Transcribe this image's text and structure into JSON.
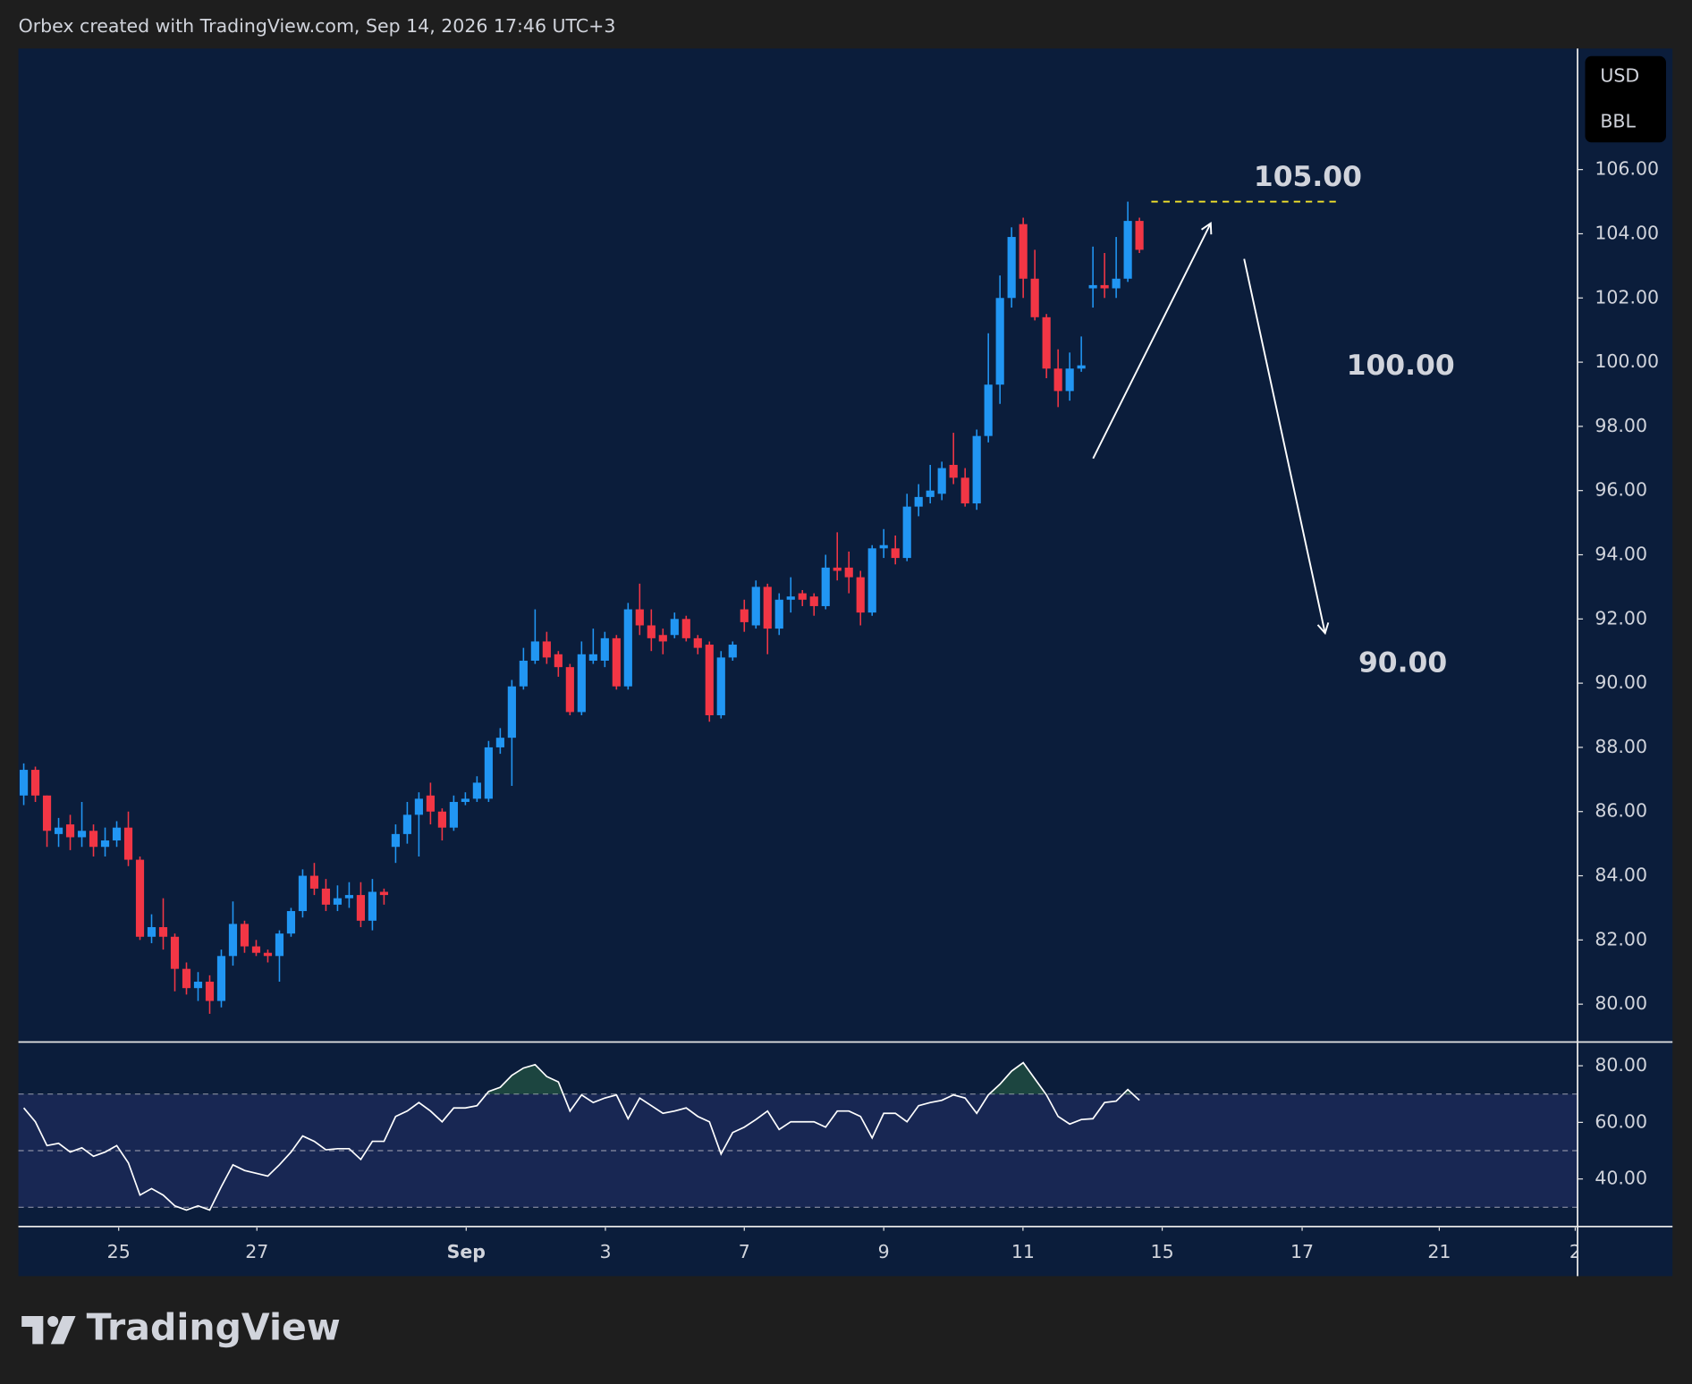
{
  "header": "Orbex created with TradingView.com, Sep 14, 2026 17:46 UTC+3",
  "branding": "TradingView",
  "units": [
    "USD",
    "BBL"
  ],
  "chart_data": [
    {
      "type": "candlestick",
      "x": [
        0,
        1,
        2,
        3,
        4,
        5,
        6,
        7,
        8,
        9,
        10,
        11,
        12,
        13,
        14,
        15,
        16,
        17,
        18,
        19,
        20,
        21,
        22,
        23,
        24,
        25,
        26,
        27,
        28,
        29,
        30,
        31,
        32,
        33,
        34,
        35,
        36,
        37,
        38,
        39,
        40,
        41,
        42,
        43,
        44,
        45,
        46,
        47,
        48,
        49,
        50,
        51,
        52,
        53,
        54,
        55,
        56,
        57,
        58,
        59,
        60,
        61,
        62,
        63,
        64,
        65,
        66,
        67,
        68,
        69,
        70,
        71,
        72,
        73,
        74,
        75,
        76,
        77,
        78,
        79,
        80,
        81,
        82,
        83,
        84,
        85,
        86,
        87,
        88,
        89,
        90,
        91,
        92,
        93,
        94,
        95,
        96
      ],
      "open": [
        86.5,
        87.3,
        86.5,
        85.3,
        85.6,
        85.2,
        85.4,
        84.9,
        85.1,
        85.5,
        84.5,
        82.1,
        82.4,
        82.1,
        81.1,
        80.5,
        80.7,
        80.1,
        81.5,
        82.5,
        81.8,
        81.6,
        81.5,
        82.2,
        82.9,
        84.0,
        83.6,
        83.1,
        83.3,
        83.4,
        82.6,
        83.5,
        84.9,
        85.3,
        85.9,
        86.5,
        86.0,
        85.5,
        86.3,
        86.4,
        86.4,
        88.0,
        88.3,
        89.9,
        90.7,
        91.3,
        90.9,
        90.5,
        89.1,
        90.7,
        90.7,
        91.4,
        89.9,
        92.3,
        91.8,
        91.5,
        91.5,
        92.0,
        91.4,
        91.2,
        89.0,
        90.8,
        92.3,
        91.8,
        93.0,
        91.7,
        92.6,
        92.8,
        92.7,
        92.4,
        93.6,
        93.6,
        93.3,
        92.2,
        94.2,
        94.2,
        93.9,
        95.5,
        95.8,
        95.9,
        96.8,
        96.4,
        95.6,
        97.7,
        99.3,
        102.0,
        104.3,
        102.6,
        101.4,
        99.8,
        99.1,
        99.8,
        102.3,
        102.4,
        102.3,
        102.6,
        104.4
      ],
      "high": [
        87.5,
        87.4,
        86.5,
        85.8,
        85.9,
        86.3,
        85.6,
        85.5,
        85.7,
        86.0,
        84.6,
        82.8,
        83.3,
        82.2,
        81.3,
        81.0,
        80.9,
        81.7,
        83.2,
        82.6,
        82.0,
        81.7,
        82.3,
        83.0,
        84.2,
        84.4,
        83.9,
        83.7,
        83.8,
        83.8,
        83.9,
        83.6,
        85.6,
        86.3,
        86.6,
        86.9,
        86.1,
        86.5,
        86.6,
        87.1,
        88.2,
        88.6,
        90.1,
        91.1,
        92.3,
        91.6,
        91.0,
        90.6,
        91.3,
        91.7,
        91.6,
        91.5,
        92.5,
        93.1,
        92.3,
        91.7,
        92.2,
        92.1,
        91.5,
        91.3,
        91.0,
        91.3,
        92.6,
        93.2,
        93.1,
        92.8,
        93.3,
        92.9,
        92.8,
        94.0,
        94.7,
        94.1,
        93.5,
        94.3,
        94.8,
        94.6,
        95.9,
        96.2,
        96.8,
        96.9,
        97.8,
        96.7,
        97.9,
        100.9,
        102.7,
        104.2,
        104.5,
        103.5,
        101.5,
        100.4,
        100.3,
        100.8,
        103.6,
        103.4,
        103.9,
        105.0,
        104.5
      ],
      "low": [
        86.2,
        86.3,
        84.9,
        84.9,
        84.8,
        84.9,
        84.6,
        84.6,
        84.9,
        84.3,
        82.0,
        81.9,
        81.7,
        80.4,
        80.3,
        80.1,
        79.7,
        79.9,
        81.2,
        81.6,
        81.5,
        81.3,
        80.7,
        82.1,
        82.7,
        83.4,
        82.9,
        82.9,
        83.0,
        82.4,
        82.3,
        83.1,
        84.4,
        85.0,
        84.6,
        85.6,
        85.1,
        85.4,
        86.2,
        86.3,
        86.3,
        87.8,
        86.8,
        89.8,
        90.6,
        90.6,
        90.2,
        89.0,
        89.0,
        90.6,
        90.5,
        89.8,
        89.8,
        91.5,
        91.0,
        90.9,
        91.4,
        91.3,
        90.9,
        88.8,
        88.9,
        90.7,
        91.6,
        91.7,
        90.9,
        91.5,
        92.2,
        92.4,
        92.1,
        92.3,
        93.2,
        92.8,
        91.8,
        92.1,
        93.9,
        93.7,
        93.8,
        95.2,
        95.6,
        95.7,
        96.2,
        95.5,
        95.4,
        97.5,
        98.7,
        101.7,
        102.0,
        101.3,
        99.5,
        98.6,
        98.8,
        99.7,
        101.7,
        102.0,
        102.0,
        102.5,
        103.4
      ],
      "close": [
        87.3,
        86.5,
        85.4,
        85.5,
        85.2,
        85.4,
        84.9,
        85.1,
        85.5,
        84.5,
        82.1,
        82.4,
        82.1,
        81.1,
        80.5,
        80.7,
        80.1,
        81.5,
        82.5,
        81.8,
        81.6,
        81.5,
        82.2,
        82.9,
        84.0,
        83.6,
        83.1,
        83.3,
        83.4,
        82.6,
        83.5,
        83.4,
        85.3,
        85.9,
        86.4,
        86.0,
        85.5,
        86.3,
        86.4,
        86.9,
        88.0,
        88.3,
        89.9,
        90.7,
        91.3,
        90.8,
        90.5,
        89.1,
        90.9,
        90.9,
        91.4,
        89.9,
        92.3,
        91.8,
        91.4,
        91.3,
        92.0,
        91.4,
        91.1,
        89.0,
        90.8,
        91.2,
        91.9,
        93.0,
        91.7,
        92.6,
        92.7,
        92.6,
        92.4,
        93.6,
        93.5,
        93.3,
        92.2,
        94.2,
        94.3,
        93.9,
        95.5,
        95.8,
        96.0,
        96.7,
        96.4,
        95.6,
        97.7,
        99.3,
        102.0,
        103.9,
        102.6,
        101.4,
        99.8,
        99.1,
        99.8,
        99.9,
        102.4,
        102.3,
        102.6,
        104.4,
        103.5
      ],
      "up_color": "#2196f3",
      "down_color": "#f23645",
      "xlim": [
        -0.46,
        133.7
      ],
      "xticks": [
        {
          "value": 8.17,
          "label": "25"
        },
        {
          "value": 20.06,
          "label": "27"
        },
        {
          "value": 38.07,
          "label": "Sep"
        },
        {
          "value": 50.05,
          "label": "3"
        },
        {
          "value": 62.0,
          "label": "7"
        },
        {
          "value": 74.0,
          "label": "9"
        },
        {
          "value": 85.98,
          "label": "11"
        },
        {
          "value": 97.96,
          "label": "15"
        },
        {
          "value": 110.0,
          "label": "17"
        },
        {
          "value": 121.8,
          "label": "21"
        },
        {
          "value": 133.5,
          "label": "2"
        }
      ],
      "ylim": [
        78.82,
        109.77
      ],
      "yticks": [
        {
          "value": 80,
          "label": "80.00"
        },
        {
          "value": 82,
          "label": "82.00"
        },
        {
          "value": 84,
          "label": "84.00"
        },
        {
          "value": 86,
          "label": "86.00"
        },
        {
          "value": 88,
          "label": "88.00"
        },
        {
          "value": 90,
          "label": "90.00"
        },
        {
          "value": 92,
          "label": "92.00"
        },
        {
          "value": 94,
          "label": "94.00"
        },
        {
          "value": 96,
          "label": "96.00"
        },
        {
          "value": 98,
          "label": "98.00"
        },
        {
          "value": 100,
          "label": "100.00"
        },
        {
          "value": 102,
          "label": "102.00"
        },
        {
          "value": 104,
          "label": "104.00"
        },
        {
          "value": 106,
          "label": "106.00"
        }
      ],
      "annotations": [
        {
          "label": "105.00",
          "value": 105,
          "dashed": true,
          "color": "#f5e52b"
        },
        {
          "label": "100.00",
          "value": 100
        },
        {
          "label": "90.00",
          "value": 90
        }
      ]
    },
    {
      "type": "line",
      "x": [
        0,
        1,
        2,
        3,
        4,
        5,
        6,
        7,
        8,
        9,
        10,
        11,
        12,
        13,
        14,
        15,
        16,
        17,
        18,
        19,
        20,
        21,
        22,
        23,
        24,
        25,
        26,
        27,
        28,
        29,
        30,
        31,
        32,
        33,
        34,
        35,
        36,
        37,
        38,
        39,
        40,
        41,
        42,
        43,
        44,
        45,
        46,
        47,
        48,
        49,
        50,
        51,
        52,
        53,
        54,
        55,
        56,
        57,
        58,
        59,
        60,
        61,
        62,
        63,
        64,
        65,
        66,
        67,
        68,
        69,
        70,
        71,
        72,
        73,
        74,
        75,
        76,
        77,
        78,
        79,
        80,
        81,
        82,
        83,
        84,
        85,
        86,
        87,
        88,
        89,
        90,
        91,
        92,
        93,
        94,
        95,
        96
      ],
      "series": [
        {
          "color": "#ffffff",
          "values": [
            65.1,
            60.2,
            51.8,
            52.6,
            49.5,
            51.0,
            48.0,
            49.5,
            51.8,
            45.7,
            34.3,
            36.6,
            34.3,
            30.5,
            29.0,
            30.5,
            29.0,
            37.3,
            45.0,
            43.0,
            42.0,
            41.0,
            45.0,
            49.5,
            55.2,
            53.3,
            50.3,
            50.7,
            50.7,
            46.9,
            53.3,
            53.3,
            62.1,
            64.0,
            67.0,
            64.0,
            60.2,
            65.1,
            65.1,
            65.9,
            70.9,
            72.4,
            76.6,
            79.2,
            80.4,
            76.2,
            74.3,
            64.0,
            69.7,
            67.0,
            68.6,
            69.7,
            61.3,
            68.6,
            65.9,
            63.2,
            64.0,
            65.1,
            62.1,
            60.2,
            48.8,
            56.4,
            58.3,
            61.0,
            64.0,
            57.5,
            60.2,
            60.2,
            60.2,
            58.3,
            64.0,
            64.0,
            62.1,
            54.5,
            63.2,
            63.2,
            60.2,
            65.9,
            67.0,
            67.8,
            69.7,
            68.6,
            63.2,
            69.7,
            73.5,
            78.1,
            81.1,
            75.4,
            69.7,
            62.1,
            59.4,
            61.0,
            61.3,
            67.0,
            67.5,
            71.6,
            67.8
          ]
        }
      ],
      "ylim": [
        23.2,
        88
      ],
      "yticks": [
        {
          "value": 40,
          "label": "40.00"
        },
        {
          "value": 60,
          "label": "60.00"
        },
        {
          "value": 80,
          "label": "80.00"
        }
      ],
      "levels": [
        70,
        50,
        30
      ],
      "band": [
        70,
        30
      ]
    }
  ]
}
